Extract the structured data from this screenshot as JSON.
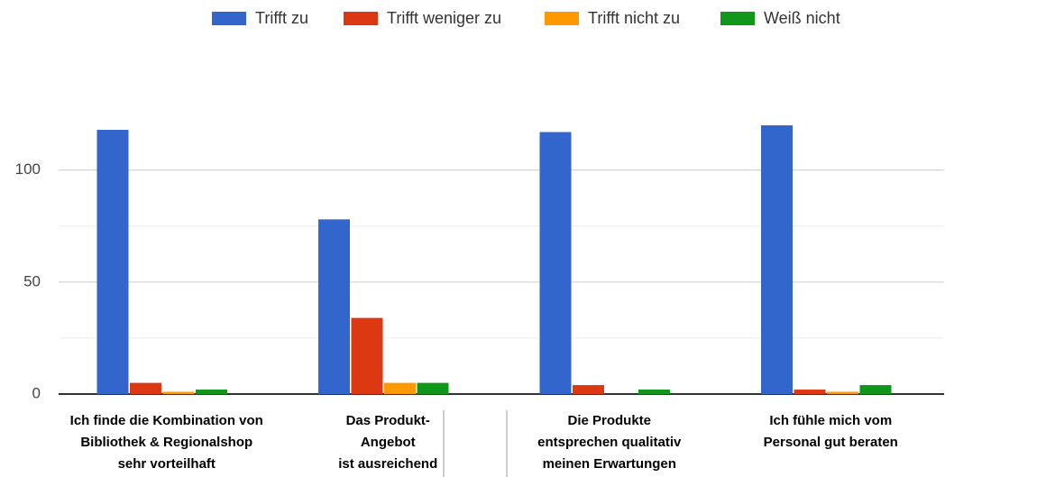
{
  "chart_data": {
    "type": "bar",
    "categories": [
      "Ich finde die Kombination von\nBibliothek & Regionalshop\nsehr vorteilhaft",
      "Das Produkt-\nAngebot\nist ausreichend",
      "Die Produkte\nentsprechen qualitativ\nmeinen Erwartungen",
      "Ich fühle mich vom\nPersonal gut beraten"
    ],
    "series": [
      {
        "name": "Trifft zu",
        "color": "#3366cc",
        "values": [
          118,
          78,
          117,
          120
        ]
      },
      {
        "name": "Trifft weniger zu",
        "color": "#dc3912",
        "values": [
          5,
          34,
          4,
          2
        ]
      },
      {
        "name": "Trifft nicht zu",
        "color": "#ff9900",
        "values": [
          1,
          5,
          0,
          1
        ]
      },
      {
        "name": "Weiß nicht",
        "color": "#109618",
        "values": [
          2,
          5,
          2,
          4
        ]
      }
    ],
    "ylim": [
      0,
      120
    ],
    "yticks": [
      0,
      50,
      100
    ],
    "minor_yticks": [
      25,
      75
    ],
    "grid": true,
    "legend": "top"
  }
}
